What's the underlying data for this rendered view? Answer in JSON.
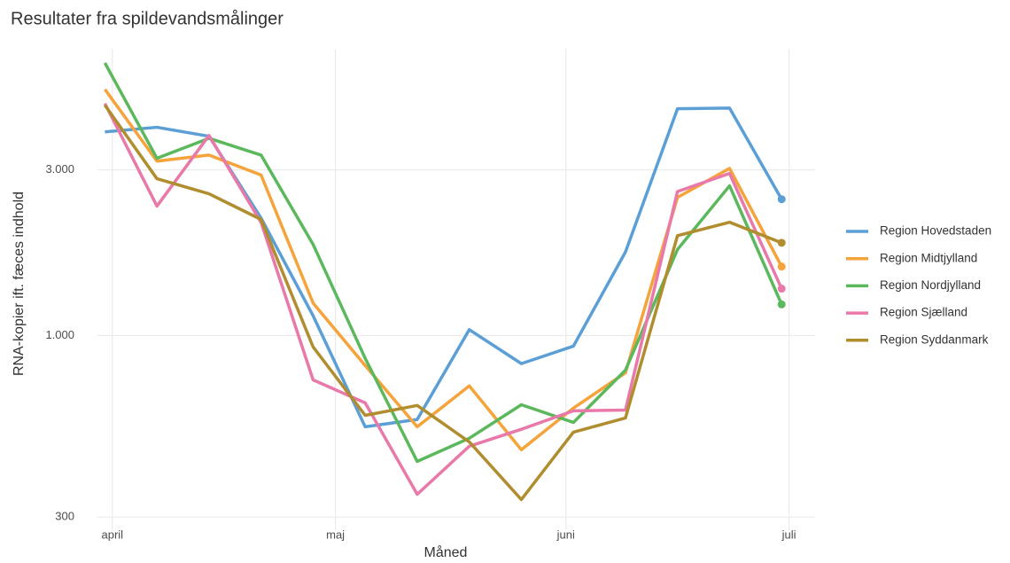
{
  "chart_data": {
    "type": "line",
    "title": "Resultater fra spildevandsmålinger",
    "xlabel": "Måned",
    "ylabel": "RNA-kopier ift. fæces indhold",
    "x": [
      -1,
      6,
      13,
      20,
      27,
      34,
      41,
      48,
      55,
      62,
      69,
      76,
      83,
      90
    ],
    "xlim": [
      -2,
      94.5
    ],
    "xticks": [
      {
        "value": 0,
        "label": "april"
      },
      {
        "value": 30,
        "label": "maj"
      },
      {
        "value": 61,
        "label": "juni"
      },
      {
        "value": 91,
        "label": "juli"
      }
    ],
    "ylim": [
      275,
      6700
    ],
    "yticks": [
      {
        "value": 300,
        "label": "300"
      },
      {
        "value": 1000,
        "label": "1.000"
      },
      {
        "value": 3000,
        "label": "3.000"
      }
    ],
    "log_y": true,
    "grid": true,
    "legend": "right",
    "series": [
      {
        "name": "Region Hovedstaden",
        "color": "#5b9fd6",
        "values": [
          3860,
          3980,
          3750,
          2180,
          1140,
          546,
          573,
          1040,
          830,
          932,
          1740,
          4500,
          4520,
          2470
        ]
      },
      {
        "name": "Region Midtjylland",
        "color": "#f5a33b",
        "values": [
          5120,
          3180,
          3310,
          2900,
          1240,
          820,
          546,
          716,
          469,
          618,
          781,
          2500,
          3030,
          1580
        ]
      },
      {
        "name": "Region Nordjylland",
        "color": "#5cb85c",
        "values": [
          6100,
          3240,
          3700,
          3310,
          1830,
          860,
          434,
          506,
          632,
          562,
          795,
          1770,
          2700,
          1230
        ]
      },
      {
        "name": "Region Sjælland",
        "color": "#e879a8",
        "values": [
          4660,
          2360,
          3770,
          2120,
          745,
          640,
          349,
          480,
          537,
          607,
          610,
          2600,
          2930,
          1365
        ]
      },
      {
        "name": "Region Syddanmark",
        "color": "#b08d2e",
        "values": [
          4610,
          2830,
          2560,
          2160,
          927,
          589,
          629,
          494,
          337,
          527,
          579,
          1940,
          2120,
          1850
        ]
      }
    ]
  }
}
